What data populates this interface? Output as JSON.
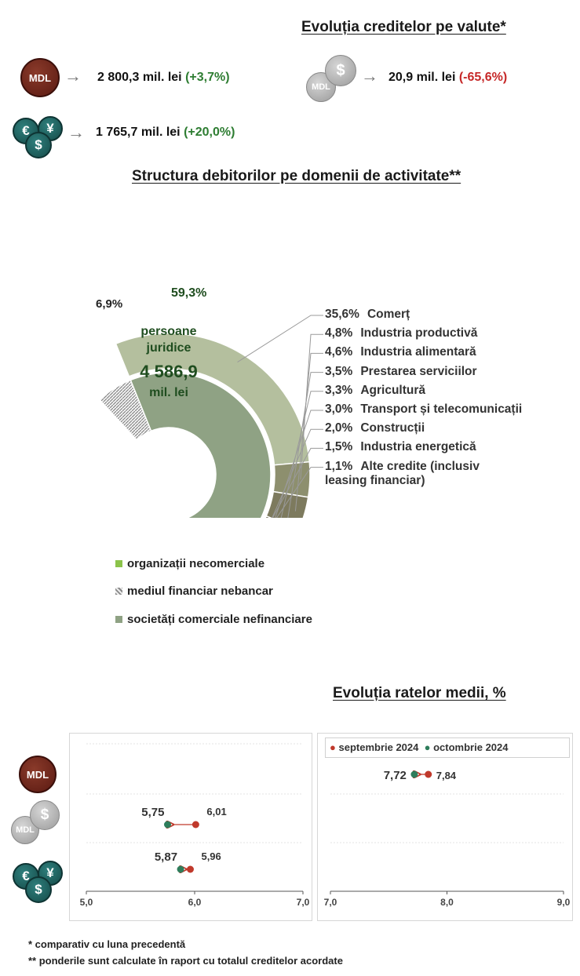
{
  "credit_currency": {
    "title": "Evoluția creditelor pe valute*",
    "items": [
      {
        "currency": "MDL",
        "value": "2 800,3 mil. lei",
        "change": "(+3,7%)"
      },
      {
        "currency": "MDL-linked",
        "value": "20,9 mil. lei",
        "change": "(-65,6%)"
      },
      {
        "currency": "foreign",
        "value": "1 765,7 mil. lei",
        "change": "(+20,0%)"
      }
    ],
    "coin_labels": {
      "mdl": "MDL",
      "linked_mdl": "MDL",
      "linked_dollar": "$",
      "euro": "€",
      "dollar": "$",
      "yen": "¥"
    }
  },
  "structure": {
    "title": "Structura debitorilor pe domenii de activitate**",
    "center": {
      "line1": "persoane",
      "line2": "juridice",
      "amount": "4 586,9",
      "unit": "mil. lei"
    }
  },
  "chart_data": [
    {
      "type": "pie",
      "inner_ring": {
        "series": [
          {
            "name": "societăți comerciale nefinanciare",
            "value": 59.3,
            "label": "59,3%",
            "color": "#8fa284"
          },
          {
            "name": "mediul financiar nebancar",
            "value": 6.9,
            "label": "6,9%",
            "color": "#c8c8c8"
          }
        ]
      },
      "outer_ring": {
        "categories": [
          "Comerț",
          "Industria productivă",
          "Industria alimentară",
          "Prestarea serviciilor",
          "Agricultură",
          "Transport și telecomunicații",
          "Construcții",
          "Industria energetică",
          "Alte credite (inclusiv leasing financiar)"
        ],
        "values": [
          35.6,
          4.8,
          4.6,
          3.5,
          3.3,
          3.0,
          2.0,
          1.5,
          1.1
        ],
        "labels": [
          "35,6%",
          "4,8%",
          "4,6%",
          "3,5%",
          "3,3%",
          "3,0%",
          "2,0%",
          "1,5%",
          "1,1%"
        ],
        "label_lines": [
          [
            "Comerț"
          ],
          [
            "Industria productivă"
          ],
          [
            "Industria alimentară"
          ],
          [
            "Prestarea serviciilor"
          ],
          [
            "Agricultură"
          ],
          [
            "Transport și telecomunicații"
          ],
          [
            "Construcții"
          ],
          [
            "Industria energetică"
          ],
          [
            "Alte credite (inclusiv",
            "leasing financiar)"
          ]
        ],
        "colors": [
          "#b4bf9e",
          "#8d8f6e",
          "#7d7a5e",
          "#6d6856",
          "#8a6a6a",
          "#8f7177",
          "#5a4a4c",
          "#3f3a36",
          "#1f3a1a"
        ]
      },
      "legend": [
        {
          "label": "organizații necomerciale",
          "color": "#8bc34a"
        },
        {
          "label": "mediul financiar nebancar",
          "color": "#bdbdbd"
        },
        {
          "label": "societăți comerciale nefinanciare",
          "color": "#8fa284"
        }
      ]
    },
    {
      "type": "scatter",
      "title": "Evoluția ratelor medii, %",
      "legend": [
        {
          "label": "septembrie 2024",
          "color": "#c0392b"
        },
        {
          "label": "octombrie 2024",
          "color": "#2e7d5b"
        }
      ],
      "panels": [
        {
          "xlim": [
            5.0,
            7.0
          ],
          "ticks": [
            "5,0",
            "6,0",
            "7,0"
          ],
          "rows": [
            {
              "currency": "MDL-linked",
              "sep": 6.01,
              "oct": 5.75,
              "sep_label": "6,01",
              "oct_label": "5,75"
            },
            {
              "currency": "foreign",
              "sep": 5.96,
              "oct": 5.87,
              "sep_label": "5,96",
              "oct_label": "5,87"
            }
          ]
        },
        {
          "xlim": [
            7.0,
            9.0
          ],
          "ticks": [
            "7,0",
            "8,0",
            "9,0"
          ],
          "rows": [
            {
              "currency": "MDL",
              "sep": 7.84,
              "oct": 7.72,
              "sep_label": "7,84",
              "oct_label": "7,72"
            }
          ]
        }
      ]
    }
  ],
  "footnotes": [
    "* comparativ cu luna precedentă",
    "** ponderile sunt calculate în raport cu totalul creditelor acordate"
  ]
}
